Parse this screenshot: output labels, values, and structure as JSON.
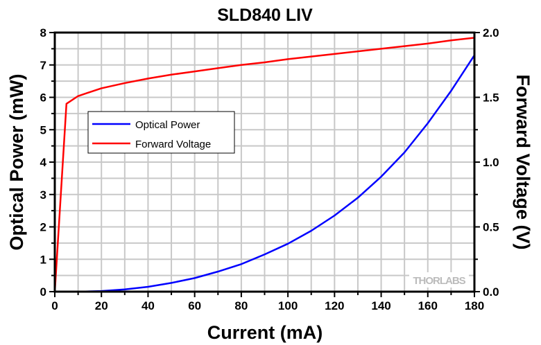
{
  "chart_data": {
    "type": "line",
    "title": "SLD840 LIV",
    "xlabel": "Current (mA)",
    "ylabel": "Optical Power (mW)",
    "y2label": "Forward Voltage (V)",
    "xlim": [
      0,
      180
    ],
    "ylim": [
      0,
      8
    ],
    "y2lim": [
      0,
      2.0
    ],
    "xticks": [
      "0",
      "20",
      "40",
      "60",
      "80",
      "100",
      "120",
      "140",
      "160",
      "180"
    ],
    "yticks": [
      "0",
      "1",
      "2",
      "3",
      "4",
      "5",
      "6",
      "7",
      "8"
    ],
    "y2ticks": [
      "0.0",
      "0.5",
      "1.0",
      "1.5",
      "2.0"
    ],
    "grid": true,
    "legend_position": "upper-left",
    "watermark": "THORLABS",
    "series": [
      {
        "name": "Optical Power",
        "axis": "left",
        "color": "#0000ff",
        "x": [
          0,
          10,
          20,
          30,
          40,
          50,
          60,
          70,
          80,
          90,
          100,
          110,
          120,
          130,
          140,
          150,
          160,
          170,
          180
        ],
        "y": [
          0,
          0,
          0.02,
          0.07,
          0.15,
          0.27,
          0.42,
          0.62,
          0.85,
          1.15,
          1.48,
          1.88,
          2.35,
          2.9,
          3.55,
          4.3,
          5.2,
          6.2,
          7.3
        ]
      },
      {
        "name": "Forward Voltage",
        "axis": "right",
        "color": "#ff0000",
        "x": [
          0,
          5,
          10,
          20,
          30,
          40,
          50,
          60,
          70,
          80,
          90,
          100,
          110,
          120,
          130,
          140,
          150,
          160,
          170,
          180
        ],
        "y": [
          0,
          1.45,
          1.51,
          1.57,
          1.61,
          1.645,
          1.675,
          1.7,
          1.725,
          1.75,
          1.77,
          1.795,
          1.815,
          1.835,
          1.855,
          1.875,
          1.895,
          1.915,
          1.94,
          1.96
        ]
      }
    ]
  }
}
